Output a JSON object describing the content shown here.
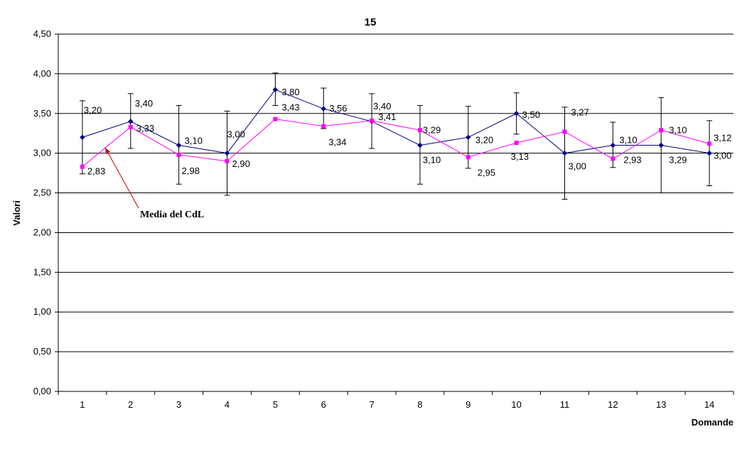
{
  "chart_data": {
    "type": "line",
    "title": "15",
    "xlabel": "Domande",
    "ylabel": "Valori",
    "ylim": [
      0,
      4.5
    ],
    "yticks": [
      "0,00",
      "0,50",
      "1,00",
      "1,50",
      "2,00",
      "2,50",
      "3,00",
      "3,50",
      "4,00",
      "4,50"
    ],
    "categories": [
      "1",
      "2",
      "3",
      "4",
      "5",
      "6",
      "7",
      "8",
      "9",
      "10",
      "11",
      "12",
      "13",
      "14"
    ],
    "grid": true,
    "series": [
      {
        "color": "#000080",
        "marker": "diamond",
        "values": [
          3.2,
          3.4,
          3.1,
          3.0,
          3.8,
          3.56,
          3.4,
          3.1,
          3.2,
          3.5,
          3.0,
          3.1,
          3.1,
          3.0
        ],
        "labels": [
          "3,20",
          "3,40",
          "3,10",
          "3,00",
          "3,80",
          "3,56",
          "3,40",
          "3,10",
          "3,20",
          "3,50",
          "3,00",
          "3,10",
          "3,10",
          "3,00"
        ],
        "error_low": [
          2.74,
          3.06,
          2.61,
          2.47,
          3.6,
          3.31,
          3.06,
          2.61,
          2.81,
          3.24,
          2.42,
          2.82,
          2.5,
          2.59
        ],
        "error_high": [
          3.66,
          3.75,
          3.6,
          3.53,
          4.01,
          3.82,
          3.75,
          3.6,
          3.59,
          3.76,
          3.58,
          3.39,
          3.7,
          3.41
        ]
      },
      {
        "color": "#FF00FF",
        "marker": "square",
        "values": [
          2.83,
          3.33,
          2.98,
          2.9,
          3.43,
          3.34,
          3.41,
          3.29,
          2.95,
          3.13,
          3.27,
          2.93,
          3.29,
          3.12
        ],
        "labels": [
          "2,83",
          "3,33",
          "2,98",
          "2,90",
          "3,43",
          "3,34",
          "3,41",
          "3,29",
          "2,95",
          "3,13",
          "3,27",
          "2,93",
          "3,29",
          "3,12"
        ]
      }
    ],
    "annotation": {
      "text": "Media del CdL",
      "target_category": "2",
      "target_series": 1
    }
  }
}
